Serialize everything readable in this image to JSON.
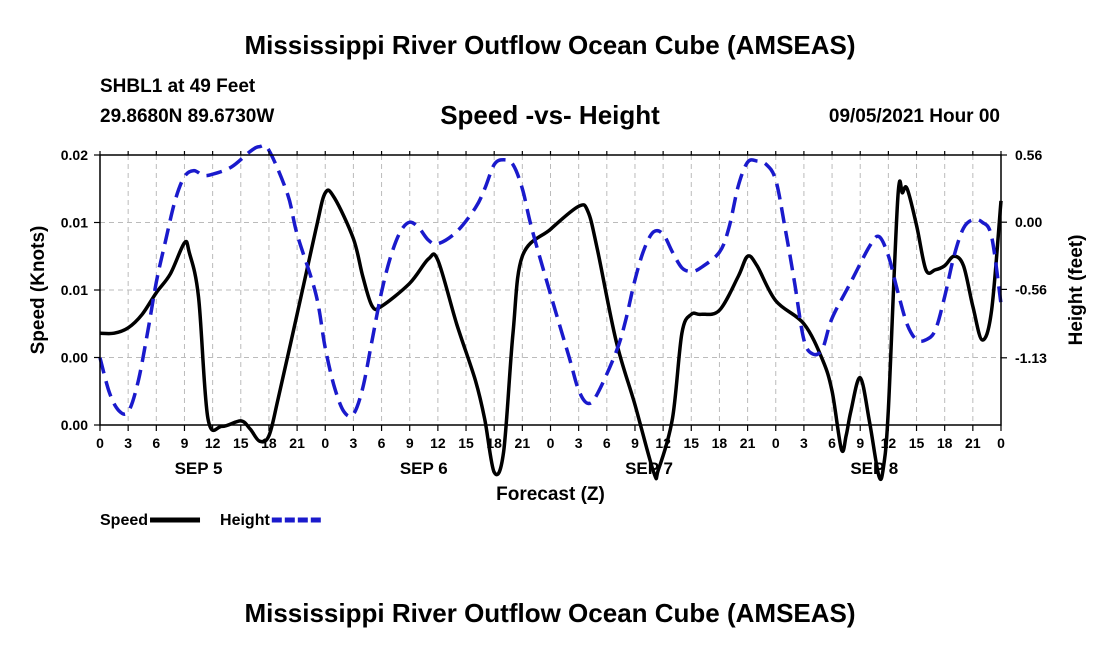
{
  "header": {
    "title": "Mississippi River Outflow Ocean Cube (AMSEAS)",
    "station": "SHBL1 at 49 Feet",
    "coords": "29.8680N  89.6730W",
    "subtitle": "Speed -vs- Height",
    "datetime": "09/05/2021 Hour 00"
  },
  "footer": {
    "title": "Mississippi River Outflow Ocean Cube (AMSEAS)"
  },
  "colors": {
    "speed": "#000000",
    "height": "#1a1acc",
    "grid": "#bbbbbb"
  },
  "chart_data": {
    "type": "line",
    "title": "Speed -vs- Height",
    "xlabel": "Forecast (Z)",
    "ylabel_left": "Speed (Knots)",
    "ylabel_right": "Height (feet)",
    "x_range_hours": [
      0,
      96
    ],
    "x_tick_step_hours": 3,
    "x_tick_labels": [
      "0",
      "3",
      "6",
      "9",
      "12",
      "15",
      "18",
      "21",
      "0",
      "3",
      "6",
      "9",
      "12",
      "15",
      "18",
      "21",
      "0",
      "3",
      "6",
      "9",
      "12",
      "15",
      "18",
      "21",
      "0",
      "3",
      "6",
      "9",
      "12",
      "15",
      "18",
      "21",
      "0"
    ],
    "day_labels": [
      {
        "label": "SEP 5",
        "hour": 10.5
      },
      {
        "label": "SEP 6",
        "hour": 34.5
      },
      {
        "label": "SEP 7",
        "hour": 58.5
      },
      {
        "label": "SEP 8",
        "hour": 82.5
      }
    ],
    "left_axis": {
      "range": [
        0,
        0.02
      ],
      "ticks": [
        {
          "value": 0,
          "label": "0.00"
        },
        {
          "value": 0.005,
          "label": "0.00"
        },
        {
          "value": 0.01,
          "label": "0.01"
        },
        {
          "value": 0.015,
          "label": "0.01"
        },
        {
          "value": 0.02,
          "label": "0.02"
        }
      ]
    },
    "right_axis": {
      "range": [
        -1.69,
        0.56
      ],
      "ticks": [
        {
          "value": 0.56,
          "label": "0.56"
        },
        {
          "value": 0.0,
          "label": "0.00"
        },
        {
          "value": -0.56,
          "label": "-0.56"
        },
        {
          "value": -1.13,
          "label": "-1.13"
        }
      ]
    },
    "series": [
      {
        "name": "Speed",
        "axis": "left",
        "style": "solid",
        "points": [
          [
            0,
            0.0068
          ],
          [
            1.5,
            0.0068
          ],
          [
            3,
            0.0072
          ],
          [
            4.5,
            0.0082
          ],
          [
            6,
            0.0098
          ],
          [
            7.5,
            0.0112
          ],
          [
            9,
            0.0135
          ],
          [
            9.5,
            0.0128
          ],
          [
            10.5,
            0.0095
          ],
          [
            11.5,
            0.0005
          ],
          [
            13,
            -0.0001
          ],
          [
            15,
            0.0003
          ],
          [
            16,
            -0.0003
          ],
          [
            17,
            -0.0012
          ],
          [
            18,
            -0.0008
          ],
          [
            19,
            0.002
          ],
          [
            21,
            0.0082
          ],
          [
            23,
            0.0145
          ],
          [
            24,
            0.0172
          ],
          [
            25,
            0.0168
          ],
          [
            27,
            0.0138
          ],
          [
            28,
            0.011
          ],
          [
            29,
            0.0088
          ],
          [
            30,
            0.0088
          ],
          [
            33,
            0.0105
          ],
          [
            35,
            0.0123
          ],
          [
            36,
            0.0122
          ],
          [
            38,
            0.0075
          ],
          [
            40,
            0.0033
          ],
          [
            41,
            0.0004
          ],
          [
            42,
            -0.0035
          ],
          [
            43,
            -0.002
          ],
          [
            44,
            0.0068
          ],
          [
            45,
            0.0125
          ],
          [
            48,
            0.0145
          ],
          [
            51,
            0.0162
          ],
          [
            52,
            0.0158
          ],
          [
            53,
            0.013
          ],
          [
            55,
            0.0062
          ],
          [
            57,
            0.0015
          ],
          [
            59,
            -0.0035
          ],
          [
            59.5,
            -0.0033
          ],
          [
            61,
            0.0005
          ],
          [
            62,
            0.0068
          ],
          [
            63,
            0.0082
          ],
          [
            64,
            0.0082
          ],
          [
            66,
            0.0085
          ],
          [
            68,
            0.011
          ],
          [
            69,
            0.0125
          ],
          [
            70,
            0.0118
          ],
          [
            72,
            0.0092
          ],
          [
            75,
            0.0075
          ],
          [
            77,
            0.0048
          ],
          [
            78,
            0.0025
          ],
          [
            79,
            -0.0018
          ],
          [
            79.5,
            -0.0008
          ],
          [
            80,
            0.001
          ],
          [
            81,
            0.0035
          ],
          [
            82,
            0.0002
          ],
          [
            83,
            -0.0038
          ],
          [
            83.5,
            -0.003
          ],
          [
            84,
            0.0012
          ],
          [
            85,
            0.0168
          ],
          [
            85.5,
            0.0172
          ],
          [
            86,
            0.0175
          ],
          [
            87,
            0.0148
          ],
          [
            88,
            0.0115
          ],
          [
            89,
            0.0115
          ],
          [
            90,
            0.0118
          ],
          [
            91,
            0.0125
          ],
          [
            92,
            0.0118
          ],
          [
            93,
            0.0088
          ],
          [
            94,
            0.0063
          ],
          [
            95,
            0.0085
          ],
          [
            96,
            0.0166
          ]
        ]
      },
      {
        "name": "Height",
        "axis": "right",
        "style": "dashed",
        "points": [
          [
            0,
            -1.13
          ],
          [
            1,
            -1.42
          ],
          [
            2,
            -1.57
          ],
          [
            3,
            -1.58
          ],
          [
            4,
            -1.35
          ],
          [
            5,
            -0.95
          ],
          [
            6,
            -0.5
          ],
          [
            7,
            -0.15
          ],
          [
            8,
            0.18
          ],
          [
            9,
            0.38
          ],
          [
            10,
            0.43
          ],
          [
            11,
            0.39
          ],
          [
            12,
            0.4
          ],
          [
            14,
            0.46
          ],
          [
            16,
            0.59
          ],
          [
            17,
            0.63
          ],
          [
            18,
            0.6
          ],
          [
            20,
            0.23
          ],
          [
            21,
            -0.1
          ],
          [
            23,
            -0.6
          ],
          [
            24,
            -1.05
          ],
          [
            25,
            -1.38
          ],
          [
            26,
            -1.58
          ],
          [
            27,
            -1.6
          ],
          [
            28,
            -1.38
          ],
          [
            29,
            -0.98
          ],
          [
            30,
            -0.58
          ],
          [
            31,
            -0.28
          ],
          [
            32,
            -0.08
          ],
          [
            33,
            0.0
          ],
          [
            34,
            -0.05
          ],
          [
            35,
            -0.15
          ],
          [
            36,
            -0.18
          ],
          [
            38,
            -0.08
          ],
          [
            40,
            0.12
          ],
          [
            41,
            0.28
          ],
          [
            42,
            0.48
          ],
          [
            43,
            0.52
          ],
          [
            44,
            0.48
          ],
          [
            45,
            0.28
          ],
          [
            46,
            -0.05
          ],
          [
            48,
            -0.6
          ],
          [
            50,
            -1.13
          ],
          [
            51,
            -1.4
          ],
          [
            52,
            -1.51
          ],
          [
            53,
            -1.43
          ],
          [
            55,
            -1.08
          ],
          [
            56,
            -0.82
          ],
          [
            57,
            -0.48
          ],
          [
            58,
            -0.22
          ],
          [
            59,
            -0.08
          ],
          [
            60,
            -0.1
          ],
          [
            61,
            -0.25
          ],
          [
            62,
            -0.38
          ],
          [
            63,
            -0.41
          ],
          [
            64,
            -0.38
          ],
          [
            66,
            -0.25
          ],
          [
            67,
            -0.05
          ],
          [
            68,
            0.3
          ],
          [
            69,
            0.5
          ],
          [
            70,
            0.51
          ],
          [
            71,
            0.48
          ],
          [
            72,
            0.35
          ],
          [
            73,
            -0.05
          ],
          [
            74,
            -0.5
          ],
          [
            75,
            -0.98
          ],
          [
            76,
            -1.1
          ],
          [
            77,
            -1.05
          ],
          [
            78,
            -0.8
          ],
          [
            80,
            -0.5
          ],
          [
            82,
            -0.2
          ],
          [
            83,
            -0.12
          ],
          [
            84,
            -0.28
          ],
          [
            85,
            -0.58
          ],
          [
            86,
            -0.85
          ],
          [
            87,
            -0.98
          ],
          [
            88,
            -0.98
          ],
          [
            89,
            -0.9
          ],
          [
            90,
            -0.62
          ],
          [
            91,
            -0.28
          ],
          [
            92,
            -0.05
          ],
          [
            93,
            0.02
          ],
          [
            94,
            0.0
          ],
          [
            95,
            -0.12
          ],
          [
            96,
            -0.68
          ]
        ]
      }
    ],
    "legend": [
      {
        "label": "Speed",
        "style": "solid"
      },
      {
        "label": "Height",
        "style": "dashed"
      }
    ]
  }
}
